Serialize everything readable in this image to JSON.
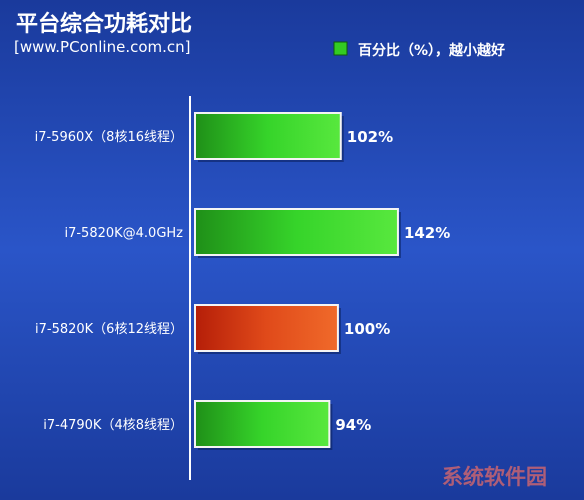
{
  "chart_data": {
    "type": "bar",
    "orientation": "horizontal",
    "title": "平台综合功耗对比",
    "subtitle": "[www.PConline.com.cn]",
    "legend": {
      "label": "百分比（%），越小越好",
      "position": "top-right",
      "color": "#33cc22"
    },
    "categories": [
      "i7-5960X（8核16线程）",
      "i7-5820K@4.0GHz",
      "i7-5820K（6核12线程）",
      "i7-4790K（4核8线程）"
    ],
    "values": [
      102,
      142,
      100,
      94
    ],
    "value_labels": [
      "102%",
      "142%",
      "100%",
      "94%"
    ],
    "bar_colors": [
      "#2ec41f",
      "#2ec41f",
      "#d23a10",
      "#2ec41f"
    ],
    "xlim": [
      0,
      240
    ],
    "grid": false
  },
  "watermark": "系统软件园",
  "colors": {
    "background": "#1b3fa8",
    "title_text": "#ffffff",
    "green_bar": "#2ec41f",
    "highlight_bar": "#d23a10"
  }
}
